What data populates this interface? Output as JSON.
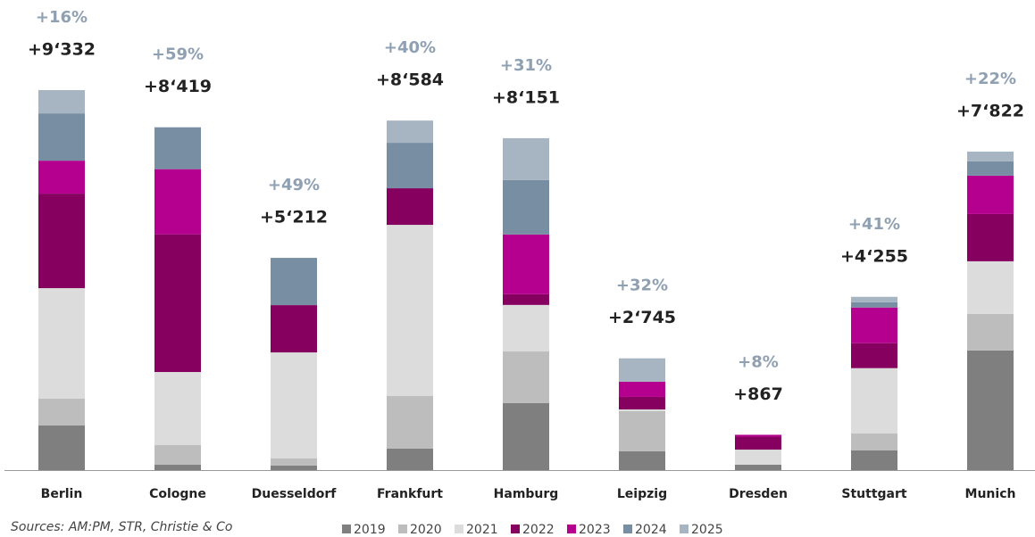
{
  "chart_data": {
    "type": "stacked_bar",
    "categories": [
      "Berlin",
      "Cologne",
      "Duesseldorf",
      "Frankfurt",
      "Hamburg",
      "Leipzig",
      "Dresden",
      "Stuttgart",
      "Munich"
    ],
    "series": [
      {
        "name": "2019",
        "color": "#7f7f7f",
        "values": [
          1095,
          131,
          110,
          526,
          1643,
          460,
          131,
          482,
          2938
        ]
      },
      {
        "name": "2020",
        "color": "#bdbdbd",
        "values": [
          657,
          482,
          175,
          1292,
          1270,
          986,
          0,
          416,
          898
        ]
      },
      {
        "name": "2021",
        "color": "#dcdcdc",
        "values": [
          2716,
          1796,
          2605,
          4205,
          1143,
          44,
          372,
          1606,
          1292
        ]
      },
      {
        "name": "2022",
        "color": "#85005f",
        "values": [
          2321,
          3382,
          1161,
          898,
          263,
          307,
          320,
          613,
          1161
        ]
      },
      {
        "name": "2023",
        "color": "#b5008f",
        "values": [
          810,
          1599,
          0,
          0,
          1467,
          372,
          44,
          876,
          942
        ]
      },
      {
        "name": "2024",
        "color": "#788ea3",
        "values": [
          1161,
          1029,
          1161,
          1117,
          1336,
          0,
          0,
          131,
          350
        ]
      },
      {
        "name": "2025",
        "color": "#a7b5c3",
        "values": [
          572,
          0,
          0,
          546,
          1029,
          576,
          0,
          131,
          241
        ]
      }
    ],
    "totals": [
      9332,
      8419,
      5212,
      8584,
      8151,
      2745,
      867,
      4255,
      7822
    ],
    "total_labels": [
      "+9‘332",
      "+8‘419",
      "+5‘212",
      "+8‘584",
      "+8‘151",
      "+2‘745",
      "+867",
      "+4‘255",
      "+7‘822"
    ],
    "growth_labels": [
      "+16%",
      "+59%",
      "+49%",
      "+40%",
      "+31%",
      "+32%",
      "+8%",
      "+41%",
      "+22%"
    ],
    "source": "Sources: AM:PM, STR, Christie & Co"
  }
}
